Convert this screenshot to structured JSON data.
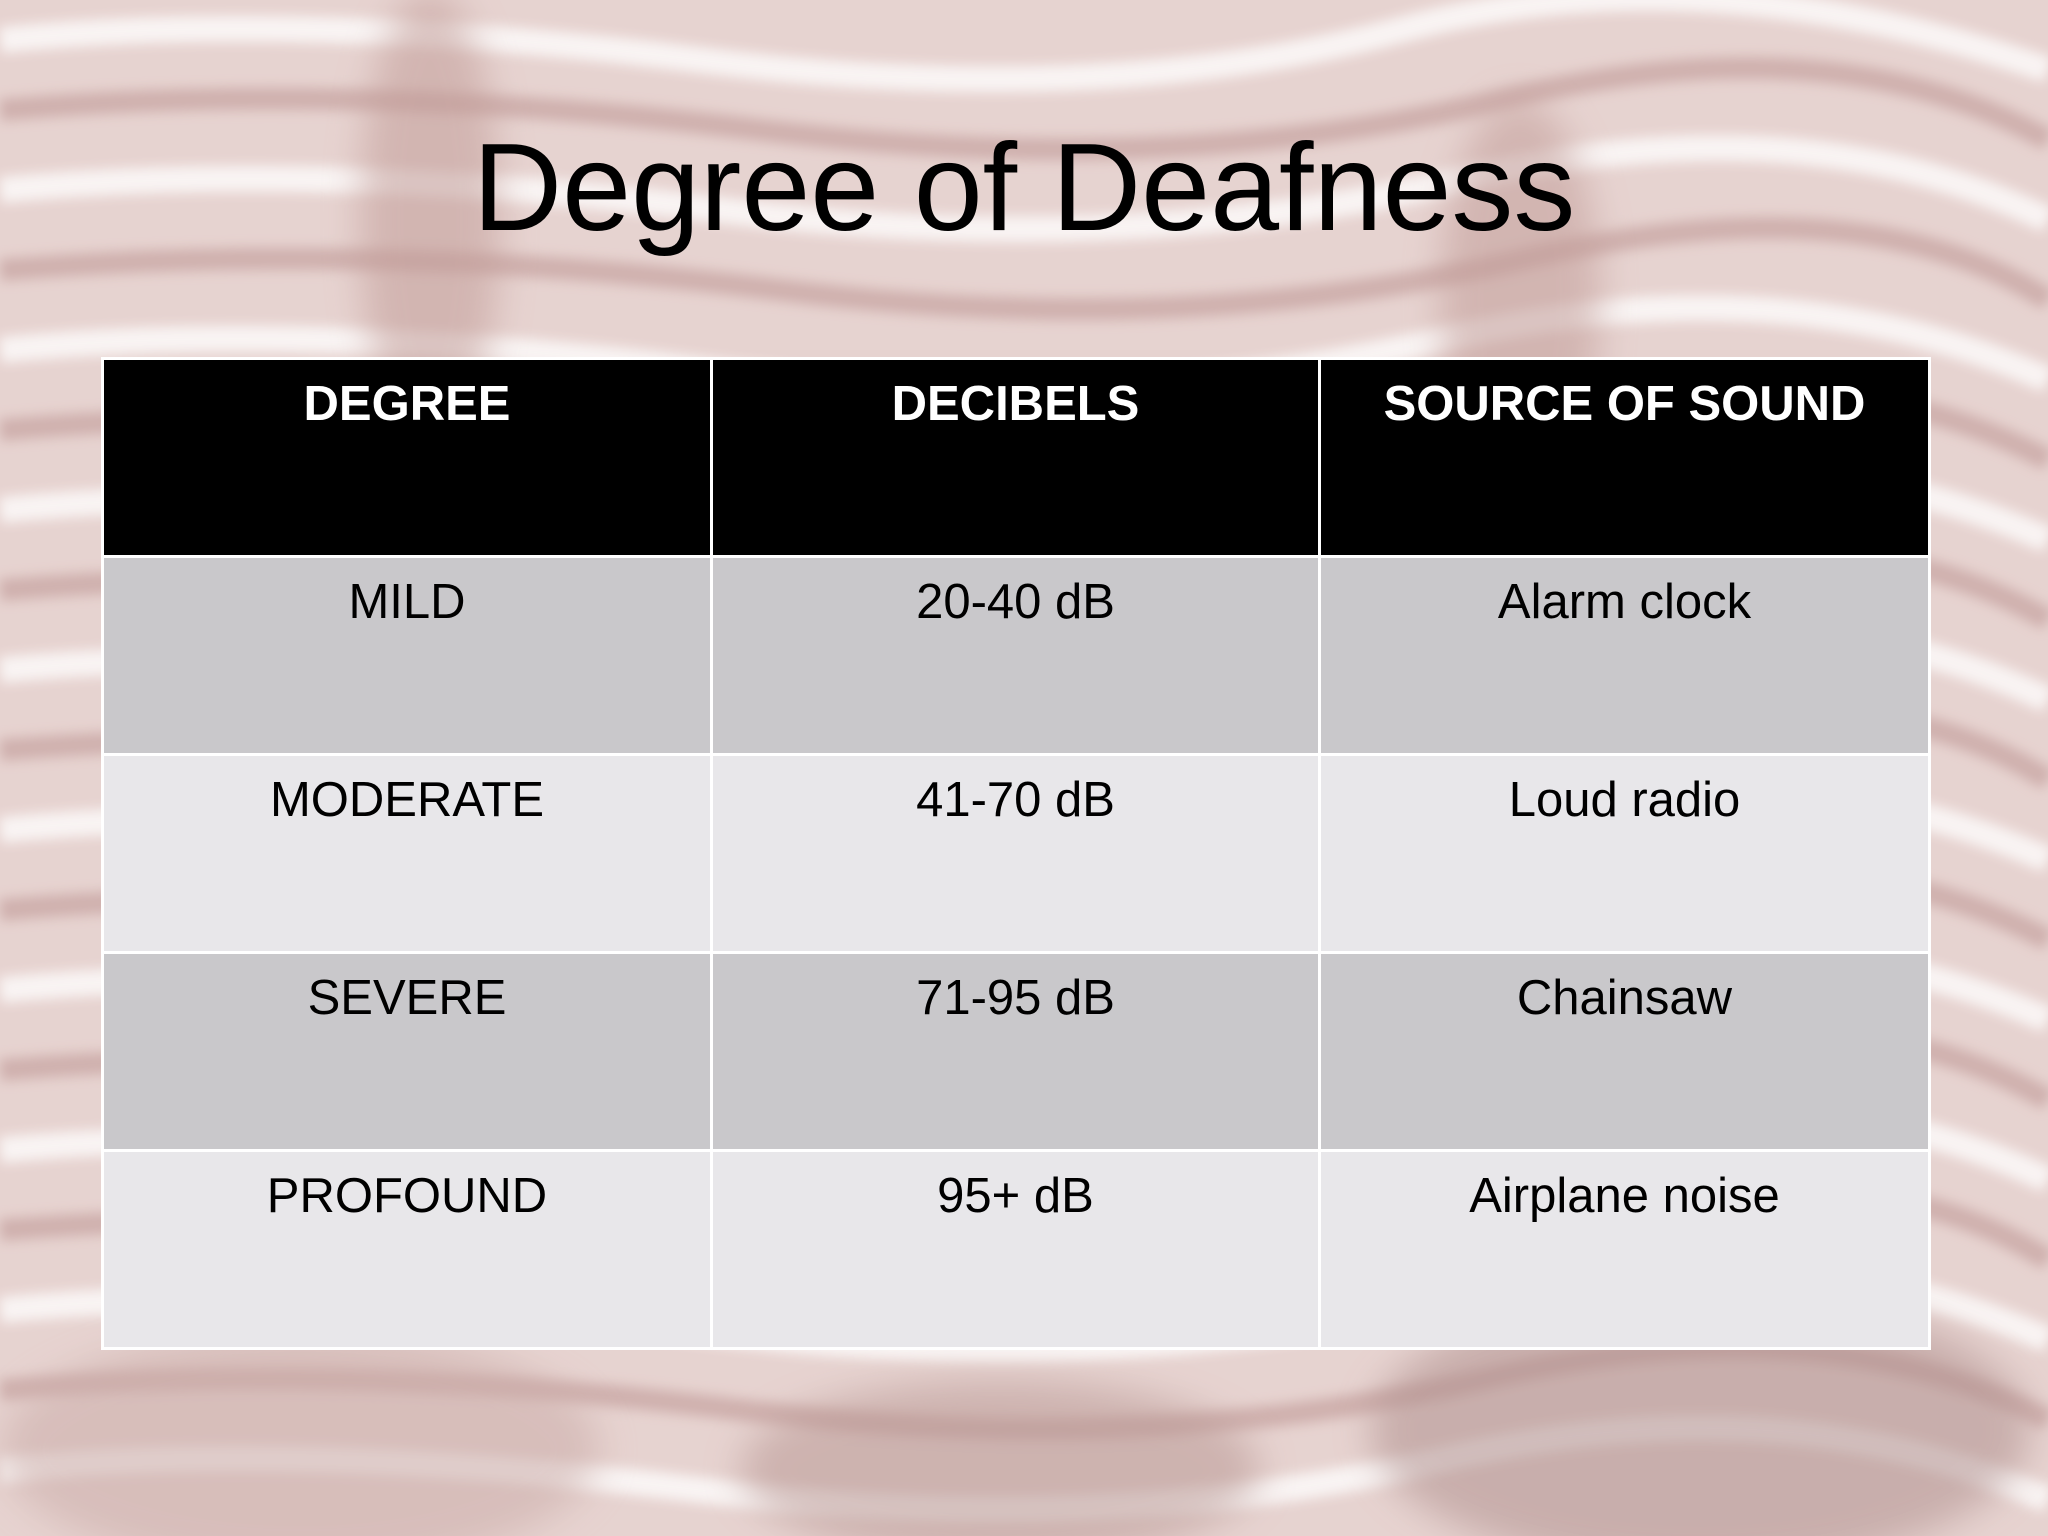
{
  "slide": {
    "title": "Degree of Deafness"
  },
  "table": {
    "headers": [
      "DEGREE",
      "DECIBELS",
      "SOURCE OF SOUND"
    ],
    "rows": [
      [
        "MILD",
        "20-40 dB",
        "Alarm clock"
      ],
      [
        "MODERATE",
        "41-70 dB",
        "Loud radio"
      ],
      [
        "SEVERE",
        "71-95 dB",
        "Chainsaw"
      ],
      [
        "PROFOUND",
        "95+ dB",
        "Airplane noise"
      ]
    ]
  },
  "colors": {
    "header_bg": "#000000",
    "header_text": "#ffffff",
    "row_dark": "#c9c8cb",
    "row_light": "#e8e7ea",
    "background_tint": "#d9b8b4"
  }
}
